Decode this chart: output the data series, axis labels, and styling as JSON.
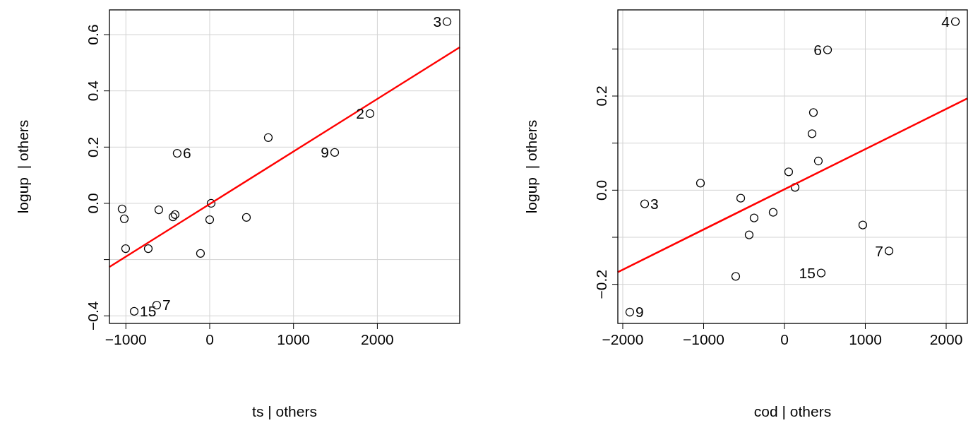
{
  "chart_data": [
    {
      "type": "scatter",
      "xlabel": "ts | others",
      "ylabel": "logup  | others",
      "xlim": [
        -1196,
        2982
      ],
      "ylim": [
        -0.427,
        0.688
      ],
      "xticks": [
        -1000,
        0,
        1000,
        2000
      ],
      "yticks": [
        -0.4,
        {
          "value": -0.2,
          "label": null
        },
        {
          "value": 0,
          "label": "0.0"
        },
        0.2,
        0.4,
        0.6
      ],
      "grid": true,
      "series": [
        {
          "marker": "circle",
          "color": "#000000",
          "x": [
            2831,
            1912,
            1491,
            699,
            -388,
            17,
            0,
            438,
            -110,
            -438,
            -413,
            -607,
            -733,
            -1003,
            -1019,
            -1045,
            -632,
            -901
          ],
          "values": [
            0.646,
            0.319,
            0.181,
            0.234,
            0.178,
            0.0,
            -0.058,
            -0.05,
            -0.178,
            -0.048,
            -0.04,
            -0.023,
            -0.161,
            -0.161,
            -0.055,
            -0.02,
            -0.362,
            -0.384
          ]
        },
        {
          "type": "line",
          "marker": "none",
          "color": "#ff0000",
          "x": [
            -1196,
            2982
          ],
          "values": [
            -0.226,
            0.555
          ]
        }
      ],
      "annotations": [
        {
          "text": "3",
          "x": 2831,
          "y": 0.646
        },
        {
          "text": "2",
          "x": 1912,
          "y": 0.319
        },
        {
          "text": "9",
          "x": 1491,
          "y": 0.181
        },
        {
          "text": "6",
          "x": -388,
          "y": 0.178
        },
        {
          "text": "7",
          "x": -632,
          "y": -0.362
        },
        {
          "text": "15",
          "x": -901,
          "y": -0.384
        }
      ]
    },
    {
      "type": "scatter",
      "xlabel": "cod | others",
      "ylabel": "logup  | others",
      "xlim": [
        -2061,
        2262
      ],
      "ylim": [
        -0.283,
        0.383
      ],
      "xticks": [
        -2000,
        -1000,
        0,
        1000,
        2000
      ],
      "yticks": [
        -0.2,
        {
          "value": -0.1,
          "label": null
        },
        {
          "value": 0,
          "label": "0.0"
        },
        {
          "value": 0.1,
          "label": null
        },
        0.2,
        {
          "value": 0.3,
          "label": null
        }
      ],
      "grid": true,
      "series": [
        {
          "marker": "circle",
          "color": "#000000",
          "x": [
            2114,
            533,
            358,
            341,
            419,
            52,
            131,
            -1039,
            -541,
            -1729,
            -376,
            -140,
            -437,
            969,
            1293,
            -603,
            454,
            -1913
          ],
          "values": [
            0.358,
            0.298,
            0.165,
            0.12,
            0.062,
            0.039,
            0.006,
            0.015,
            -0.017,
            -0.029,
            -0.059,
            -0.047,
            -0.095,
            -0.074,
            -0.129,
            -0.183,
            -0.176,
            -0.259
          ]
        },
        {
          "type": "line",
          "marker": "none",
          "color": "#ff0000",
          "x": [
            -2061,
            2262
          ],
          "values": [
            -0.174,
            0.195
          ]
        }
      ],
      "annotations": [
        {
          "text": "4",
          "x": 2114,
          "y": 0.358
        },
        {
          "text": "6",
          "x": 533,
          "y": 0.298
        },
        {
          "text": "3",
          "x": -1729,
          "y": -0.029
        },
        {
          "text": "7",
          "x": 1293,
          "y": -0.129
        },
        {
          "text": "15",
          "x": 454,
          "y": -0.176
        },
        {
          "text": "9",
          "x": -1913,
          "y": -0.259
        }
      ]
    }
  ]
}
